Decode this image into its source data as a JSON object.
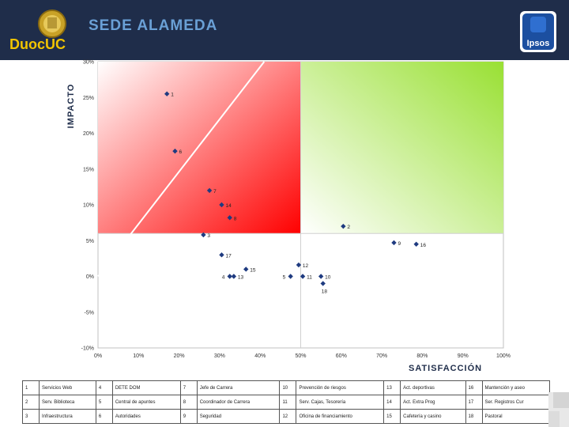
{
  "header": {
    "title": "SEDE ALAMEDA",
    "logo_left_text": "DuocUC",
    "logo_right_text": "Ipsos"
  },
  "colors": {
    "header_bg": "#1f2d4a",
    "title_color": "#6aa0d6",
    "red_quadrant": "#ff0000",
    "green_quadrant": "#99e033",
    "marker": "#1f3b80"
  },
  "chart_data": {
    "type": "scatter",
    "xlabel": "SATISFACCIÓN",
    "ylabel": "IMPACTO",
    "xlim": [
      0,
      100
    ],
    "ylim": [
      -10,
      30
    ],
    "x_ticks": [
      "0%",
      "10%",
      "20%",
      "30%",
      "40%",
      "50%",
      "60%",
      "70%",
      "80%",
      "90%",
      "100%"
    ],
    "y_ticks": [
      "-10%",
      "-5%",
      "0%",
      "5%",
      "10%",
      "15%",
      "20%",
      "25%",
      "30%"
    ],
    "quadrant_split": {
      "x": 50,
      "y": 6
    },
    "points": [
      {
        "label": "1",
        "x": 17,
        "y": 25.5
      },
      {
        "label": "6",
        "x": 19,
        "y": 17.5
      },
      {
        "label": "7",
        "x": 27.5,
        "y": 12
      },
      {
        "label": "14",
        "x": 30.5,
        "y": 10
      },
      {
        "label": "8",
        "x": 32.5,
        "y": 8.2
      },
      {
        "label": "3",
        "x": 26,
        "y": 5.8
      },
      {
        "label": "2",
        "x": 60.5,
        "y": 7
      },
      {
        "label": "9",
        "x": 73,
        "y": 4.7
      },
      {
        "label": "16",
        "x": 78.5,
        "y": 4.5
      },
      {
        "label": "17",
        "x": 30.5,
        "y": 3
      },
      {
        "label": "12",
        "x": 49.5,
        "y": 1.6
      },
      {
        "label": "15",
        "x": 36.5,
        "y": 1
      },
      {
        "label": "4",
        "x": 32.5,
        "y": 0
      },
      {
        "label": "13",
        "x": 33.5,
        "y": 0
      },
      {
        "label": "5",
        "x": 47.5,
        "y": 0
      },
      {
        "label": "11",
        "x": 50.5,
        "y": 0
      },
      {
        "label": "10",
        "x": 55,
        "y": 0
      },
      {
        "label": "18",
        "x": 55.5,
        "y": -1
      }
    ],
    "diagonal": {
      "x1": 0,
      "y1": 0,
      "x2": 41,
      "y2": 30
    }
  },
  "legend": {
    "rows": [
      [
        [
          "1",
          "Servicios Web"
        ],
        [
          "4",
          "DETE DOM"
        ],
        [
          "7",
          "Jefe de Carrera"
        ],
        [
          "10",
          "Prevención de riesgos"
        ],
        [
          "13",
          "Act. deportivas"
        ],
        [
          "16",
          "Mantención y aseo"
        ]
      ],
      [
        [
          "2",
          "Serv. Biblioteca"
        ],
        [
          "5",
          "Central de apuntes"
        ],
        [
          "8",
          "Coordinador de Carrera"
        ],
        [
          "11",
          "Serv. Cajas, Tesorería"
        ],
        [
          "14",
          "Act. Extra Prog"
        ],
        [
          "17",
          "Ser. Registros Cur"
        ]
      ],
      [
        [
          "3",
          "Infraestructura"
        ],
        [
          "6",
          "Autoridades"
        ],
        [
          "9",
          "Seguridad"
        ],
        [
          "12",
          "Oficina de financiamiento"
        ],
        [
          "15",
          "Cafetería y casino"
        ],
        [
          "18",
          "Pastoral"
        ]
      ]
    ]
  }
}
